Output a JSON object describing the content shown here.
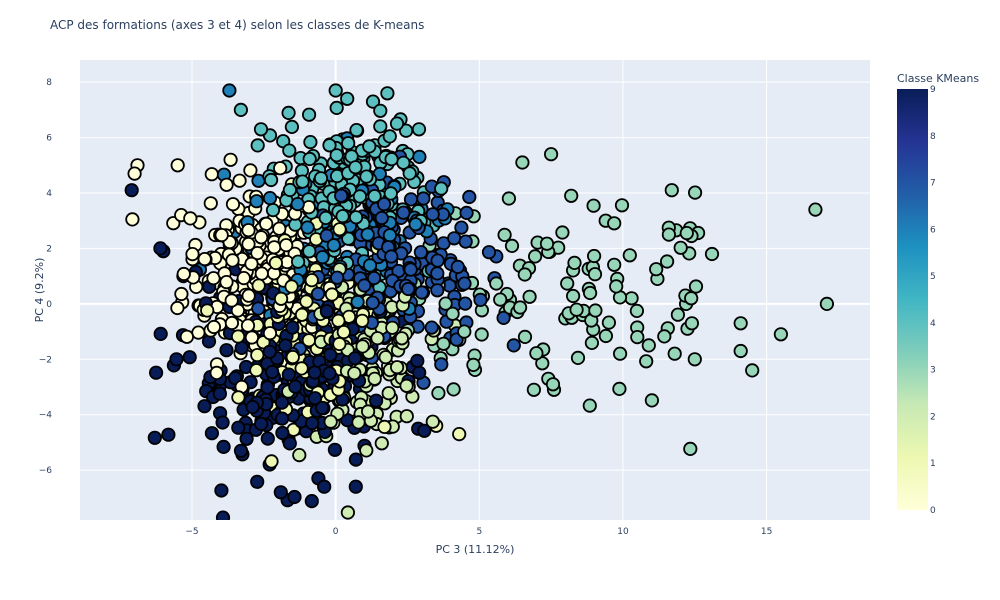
{
  "chart_data": {
    "type": "scatter",
    "title": "ACP des formations (axes 3 et 4) selon les classes de K-means",
    "xlabel": "PC 3 (11.12%)",
    "ylabel": "PC 4 (9.2%)",
    "xlim": [
      -8.9,
      18.6
    ],
    "ylim": [
      -7.8,
      8.8
    ],
    "x_ticks": [
      -5,
      0,
      5,
      10,
      15
    ],
    "y_ticks": [
      -6,
      -4,
      -2,
      0,
      2,
      4,
      6,
      8
    ],
    "grid": true,
    "colorbar": {
      "title": "Classe KMeans",
      "range": [
        0,
        9
      ],
      "ticks": [
        0,
        1,
        2,
        3,
        4,
        5,
        6,
        7,
        8,
        9
      ],
      "colorscale": [
        "#ffffd9",
        "#edf8b1",
        "#c7e9b4",
        "#7fcdbb",
        "#41b6c4",
        "#1d91c0",
        "#225ea8",
        "#253494",
        "#081d58"
      ]
    },
    "clusters": [
      {
        "cls": 0,
        "cx": -2.9,
        "cy": 1.2,
        "sx": 1.2,
        "sy": 1.6,
        "n": 230,
        "rot": 0
      },
      {
        "cls": 1,
        "cx": -1.0,
        "cy": -0.6,
        "sx": 1.2,
        "sy": 1.5,
        "n": 170,
        "rot": 0
      },
      {
        "cls": 2,
        "cx": 1.0,
        "cy": -1.9,
        "sx": 1.0,
        "sy": 1.4,
        "n": 170,
        "rot": 0
      },
      {
        "cls": 3,
        "cx": 7.5,
        "cy": 0.3,
        "sx": 3.2,
        "sy": 1.9,
        "n": 110,
        "rot": 0
      },
      {
        "cls": 4,
        "cx": 0.4,
        "cy": 4.0,
        "sx": 1.4,
        "sy": 1.3,
        "n": 190,
        "rot": 0
      },
      {
        "cls": 6,
        "cx": 0.3,
        "cy": 2.3,
        "sx": 1.6,
        "sy": 1.4,
        "n": 120,
        "rot": 0
      },
      {
        "cls": 7,
        "cx": 2.0,
        "cy": 1.4,
        "sx": 1.6,
        "sy": 1.5,
        "n": 190,
        "rot": 0
      },
      {
        "cls": 9,
        "cx": -1.8,
        "cy": -2.6,
        "sx": 1.8,
        "sy": 1.7,
        "n": 240,
        "rot": 0
      }
    ],
    "extra_points": [
      {
        "x": -6.9,
        "y": 5.0,
        "cls": 0
      },
      {
        "x": -7.0,
        "y": 4.7,
        "cls": 0
      },
      {
        "x": -5.5,
        "y": 5.0,
        "cls": 0
      },
      {
        "x": -7.1,
        "y": 4.1,
        "cls": 9
      },
      {
        "x": -6.1,
        "y": 2.0,
        "cls": 9
      },
      {
        "x": -6.0,
        "y": 1.9,
        "cls": 9
      },
      {
        "x": -5.3,
        "y": 1.0,
        "cls": 9
      },
      {
        "x": -3.7,
        "y": 7.7,
        "cls": 6
      },
      {
        "x": -3.3,
        "y": 7.0,
        "cls": 4
      },
      {
        "x": 0.0,
        "y": 7.7,
        "cls": 4
      },
      {
        "x": 0.4,
        "y": 7.4,
        "cls": 4
      },
      {
        "x": 1.3,
        "y": 7.3,
        "cls": 4
      },
      {
        "x": 1.8,
        "y": 7.6,
        "cls": 4
      },
      {
        "x": 2.9,
        "y": 6.3,
        "cls": 4
      },
      {
        "x": -2.6,
        "y": 6.3,
        "cls": 4
      },
      {
        "x": -0.6,
        "y": -6.3,
        "cls": 9
      },
      {
        "x": -0.4,
        "y": -6.6,
        "cls": 9
      },
      {
        "x": 0.7,
        "y": -6.6,
        "cls": 9
      },
      {
        "x": 4.3,
        "y": -4.7,
        "cls": 1
      },
      {
        "x": 3.5,
        "y": -4.4,
        "cls": 1
      },
      {
        "x": 6.2,
        "y": -1.5,
        "cls": 7
      },
      {
        "x": 6.5,
        "y": 5.1,
        "cls": 3
      },
      {
        "x": 7.5,
        "y": 5.4,
        "cls": 3
      },
      {
        "x": 8.2,
        "y": 3.9,
        "cls": 3
      },
      {
        "x": 9.4,
        "y": 3.0,
        "cls": 3
      },
      {
        "x": 11.7,
        "y": 4.1,
        "cls": 3
      },
      {
        "x": 11.6,
        "y": 2.5,
        "cls": 3
      },
      {
        "x": 13.1,
        "y": 1.8,
        "cls": 3
      },
      {
        "x": 16.7,
        "y": 3.4,
        "cls": 3
      },
      {
        "x": 17.1,
        "y": 0.0,
        "cls": 3
      },
      {
        "x": 15.5,
        "y": -1.1,
        "cls": 3
      },
      {
        "x": 14.5,
        "y": -2.4,
        "cls": 3
      },
      {
        "x": 14.1,
        "y": -1.7,
        "cls": 3
      },
      {
        "x": 14.1,
        "y": -0.7,
        "cls": 3
      },
      {
        "x": 12.5,
        "y": -2.0,
        "cls": 3
      },
      {
        "x": 11.8,
        "y": -1.8,
        "cls": 3
      },
      {
        "x": 10.9,
        "y": -1.5,
        "cls": 3
      },
      {
        "x": 9.9,
        "y": -1.8,
        "cls": 3
      },
      {
        "x": 7.6,
        "y": -3.1,
        "cls": 3
      },
      {
        "x": 6.9,
        "y": -3.1,
        "cls": 3
      },
      {
        "x": 8.9,
        "y": -0.6,
        "cls": 3
      },
      {
        "x": 10.5,
        "y": -1.2,
        "cls": 3
      },
      {
        "x": 12.2,
        "y": 0.0,
        "cls": 3
      },
      {
        "x": 12.4,
        "y": -0.7,
        "cls": 3
      },
      {
        "x": 11.2,
        "y": 0.9,
        "cls": 3
      },
      {
        "x": 10.3,
        "y": 0.2,
        "cls": 3
      },
      {
        "x": 9.8,
        "y": 0.9,
        "cls": 3
      }
    ]
  }
}
